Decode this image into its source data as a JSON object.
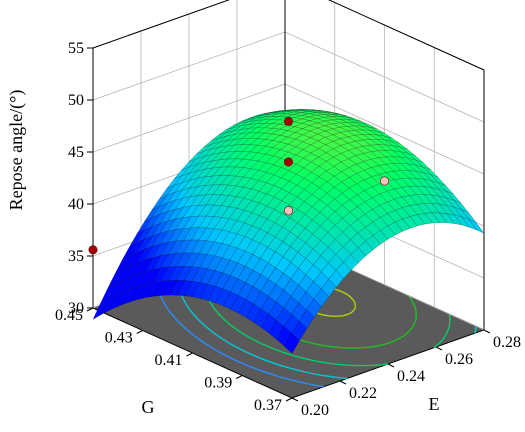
{
  "chart_data": {
    "type": "surface",
    "title": "",
    "zlabel": "Repose angle/(°)",
    "xlabel": "E",
    "ylabel": "G",
    "z_ticks": [
      "30",
      "35",
      "40",
      "45",
      "50",
      "55"
    ],
    "x_ticks": [
      "0.20",
      "0.22",
      "0.24",
      "0.26",
      "0.28"
    ],
    "y_ticks": [
      "0.37",
      "0.39",
      "0.41",
      "0.43",
      "0.45"
    ],
    "xlim": [
      0.2,
      0.28
    ],
    "ylim": [
      0.37,
      0.45
    ],
    "zlim": [
      30,
      55
    ],
    "colormap": [
      "#0000ff",
      "#00c8ff",
      "#00ff66",
      "#d6e600"
    ],
    "floor_color": "#5a5a5a",
    "design_points": [
      {
        "E": 0.2,
        "G": 0.45,
        "z": 35.6,
        "color": "#a00000"
      },
      {
        "E": 0.24,
        "G": 0.41,
        "z": 49.0,
        "color": "#a00000"
      },
      {
        "E": 0.24,
        "G": 0.41,
        "z": 45.1,
        "color": "#a00000"
      },
      {
        "E": 0.24,
        "G": 0.41,
        "z": 40.4,
        "color": "#ffc0c0"
      },
      {
        "E": 0.28,
        "G": 0.41,
        "z": 40.0,
        "color": "#ffc0c0"
      }
    ],
    "contours": [
      {
        "level": 38,
        "color": "#2a8cff"
      },
      {
        "level": 40,
        "color": "#00c8d8"
      },
      {
        "level": 42,
        "color": "#00d068"
      },
      {
        "level": 44,
        "color": "#20c020"
      },
      {
        "level": 46,
        "color": "#b8d000"
      }
    ],
    "grid": true
  }
}
